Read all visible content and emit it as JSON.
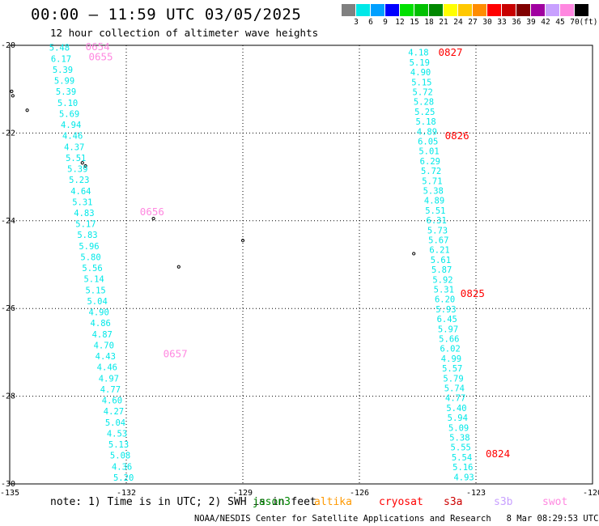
{
  "title": "00:00 – 11:59 UTC 03/05/2025",
  "subtitle": "12 hour collection of altimeter wave heights",
  "legend": {
    "unit": "(ft)",
    "items": [
      {
        "label": "3",
        "color": "#808080"
      },
      {
        "label": "6",
        "color": "#00e8e8"
      },
      {
        "label": "9",
        "color": "#00a0ff"
      },
      {
        "label": "12",
        "color": "#0000ff"
      },
      {
        "label": "15",
        "color": "#00e000"
      },
      {
        "label": "18",
        "color": "#00c000"
      },
      {
        "label": "21",
        "color": "#008800"
      },
      {
        "label": "24",
        "color": "#ffff00"
      },
      {
        "label": "27",
        "color": "#ffc800"
      },
      {
        "label": "30",
        "color": "#ff8c00"
      },
      {
        "label": "33",
        "color": "#ff0000"
      },
      {
        "label": "36",
        "color": "#c80000"
      },
      {
        "label": "39",
        "color": "#800000"
      },
      {
        "label": "42",
        "color": "#a000a0"
      },
      {
        "label": "45",
        "color": "#c8a0ff"
      },
      {
        "label": "70",
        "color": "#ff88e0"
      },
      {
        "label": "",
        "color": "#000000"
      }
    ]
  },
  "note": "note: 1) Time is in UTC; 2) SWH is in feet",
  "satellites": [
    {
      "name": "jason3",
      "color": "#008800"
    },
    {
      "name": "altika",
      "color": "#ff9900"
    },
    {
      "name": "cryosat",
      "color": "#ff0000"
    },
    {
      "name": "s3a",
      "color": "#cc0000"
    },
    {
      "name": "s3b",
      "color": "#c8a0ff"
    },
    {
      "name": "swot",
      "color": "#ff88e0"
    }
  ],
  "footer": "NOAA/NESDIS Center for Satellite Applications and Research   8 Mar 08:29:53 UTC 2025",
  "chart_data": {
    "type": "scatter",
    "xlim": [
      -135,
      -120
    ],
    "ylim": [
      -30,
      -20
    ],
    "x_ticks": [
      "-135",
      "-132",
      "-129",
      "-126",
      "-123",
      "-120"
    ],
    "y_ticks": [
      "-20",
      "-22",
      "-24",
      "-26",
      "-28",
      "-30"
    ],
    "grid": true,
    "point_color": "#00e8e8",
    "tracks": [
      {
        "name": "west",
        "start": [
          -133.72,
          -20.05
        ],
        "end": [
          -132.07,
          -29.85
        ],
        "values": [
          "5.48",
          "6.17",
          "5.39",
          "5.99",
          "5.39",
          "5.10",
          "5.69",
          "4.94",
          "4.46",
          "4.37",
          "5.51",
          "5.39",
          "5.23",
          "4.64",
          "5.31",
          "4.83",
          "5.17",
          "5.83",
          "5.96",
          "5.80",
          "5.56",
          "5.14",
          "5.15",
          "5.04",
          "4.90",
          "4.86",
          "4.87",
          "4.70",
          "4.43",
          "4.46",
          "4.97",
          "4.77",
          "4.60",
          "4.27",
          "5.04",
          "4.53",
          "5.13",
          "5.08",
          "4.36",
          "5.20"
        ]
      },
      {
        "name": "east",
        "start": [
          -124.48,
          -20.16
        ],
        "end": [
          -123.31,
          -29.84
        ],
        "values": [
          "4.18",
          "5.19",
          "4.90",
          "5.15",
          "5.72",
          "5.28",
          "5.25",
          "5.18",
          "4.89",
          "6.05",
          "5.01",
          "6.29",
          "5.72",
          "5.71",
          "5.38",
          "4.89",
          "5.51",
          "6.31",
          "5.73",
          "5.67",
          "6.21",
          "5.61",
          "5.87",
          "5.92",
          "5.31",
          "6.20",
          "5.93",
          "6.45",
          "5.97",
          "5.66",
          "6.02",
          "4.99",
          "5.57",
          "5.79",
          "5.74",
          "4.77",
          "5.40",
          "5.94",
          "5.09",
          "5.38",
          "5.55",
          "5.54",
          "5.16",
          "4.93"
        ]
      }
    ],
    "time_labels": [
      {
        "text": "0654",
        "lon": -133.05,
        "lat": -20.02,
        "color": "#ff88e0"
      },
      {
        "text": "0655",
        "lon": -132.97,
        "lat": -20.25,
        "color": "#ff88e0"
      },
      {
        "text": "0656",
        "lon": -131.65,
        "lat": -23.78,
        "color": "#ff88e0"
      },
      {
        "text": "0657",
        "lon": -131.05,
        "lat": -27.02,
        "color": "#ff88e0"
      },
      {
        "text": "0827",
        "lon": -123.97,
        "lat": -20.15,
        "color": "#ff0000"
      },
      {
        "text": "0826",
        "lon": -123.8,
        "lat": -22.05,
        "color": "#ff0000"
      },
      {
        "text": "0825",
        "lon": -123.4,
        "lat": -25.65,
        "color": "#ff0000"
      },
      {
        "text": "0824",
        "lon": -122.75,
        "lat": -29.3,
        "color": "#ff0000"
      }
    ],
    "islands": [
      [
        -134.95,
        -21.05
      ],
      [
        -134.92,
        -21.15
      ],
      [
        -134.55,
        -21.48
      ],
      [
        -133.13,
        -22.68
      ],
      [
        -133.05,
        -22.75
      ],
      [
        -131.3,
        -23.95
      ],
      [
        -129.0,
        -24.45
      ],
      [
        -130.65,
        -25.05
      ],
      [
        -124.6,
        -24.75
      ]
    ]
  }
}
